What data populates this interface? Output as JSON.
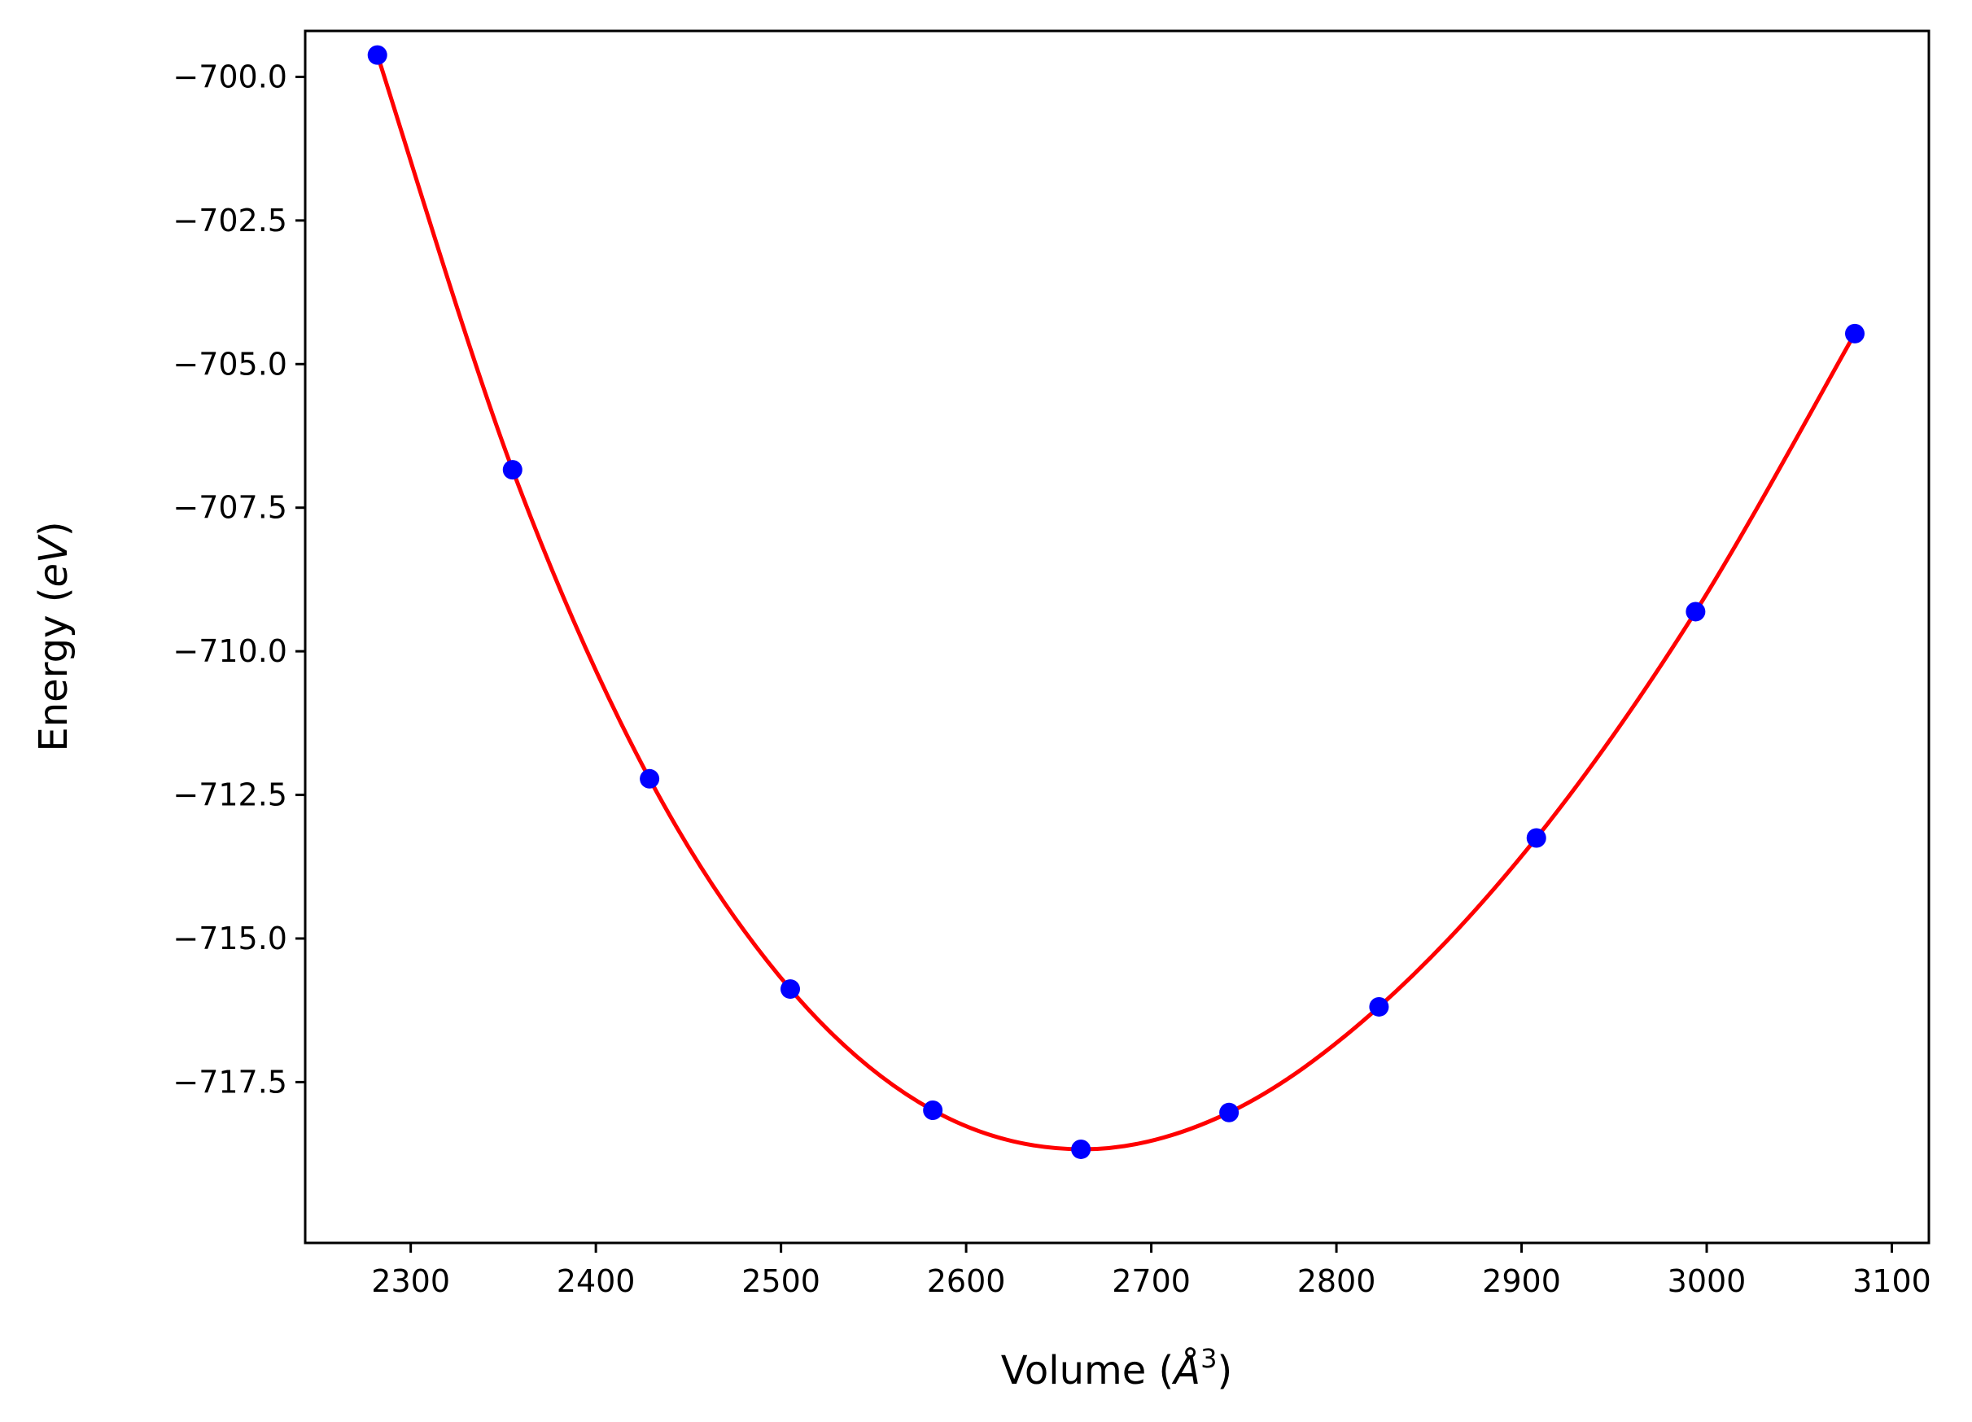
{
  "chart_data": {
    "type": "scatter",
    "xlabel": "Volume (",
    "xlabel_symbol": "Å",
    "xlabel_exp": "3",
    "xlabel_close": ")",
    "ylabel": "Energy (",
    "ylabel_unit": "eV",
    "ylabel_close": ")",
    "xlim": [
      2243,
      3120
    ],
    "ylim": [
      -720.3,
      -699.2
    ],
    "xticks": [
      2300,
      2400,
      2500,
      2600,
      2700,
      2800,
      2900,
      3000,
      3100
    ],
    "xtick_labels": [
      "2300",
      "2400",
      "2500",
      "2600",
      "2700",
      "2800",
      "2900",
      "3000",
      "3100"
    ],
    "yticks": [
      -700.0,
      -702.5,
      -705.0,
      -707.5,
      -710.0,
      -712.5,
      -715.0,
      -717.5
    ],
    "ytick_labels": [
      "−700.0",
      "−702.5",
      "−705.0",
      "−707.5",
      "−710.0",
      "−712.5",
      "−715.0",
      "−717.5"
    ],
    "grid": false,
    "series": [
      {
        "kind": "markers",
        "color": "#0000ff",
        "points": [
          [
            2282,
            -699.62
          ],
          [
            2355,
            -706.84
          ],
          [
            2429,
            -712.22
          ],
          [
            2505,
            -715.88
          ],
          [
            2582,
            -717.99
          ],
          [
            2662,
            -718.67
          ],
          [
            2742,
            -718.03
          ],
          [
            2823,
            -716.19
          ],
          [
            2908,
            -713.25
          ],
          [
            2994,
            -709.31
          ],
          [
            3080,
            -704.47
          ]
        ]
      },
      {
        "kind": "fit-curve",
        "color": "#ff0000",
        "x_range": [
          2282,
          3080
        ]
      }
    ]
  }
}
